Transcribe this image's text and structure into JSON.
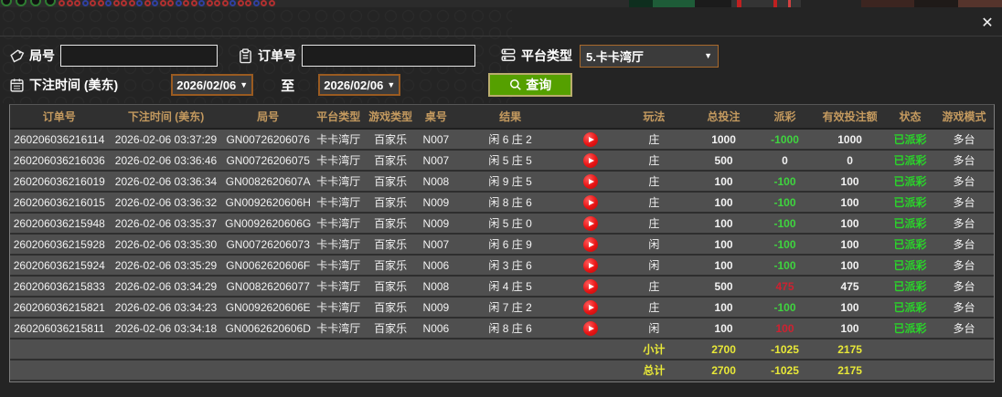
{
  "window": {
    "close_label": "✕"
  },
  "filters": {
    "round_label": "局号",
    "order_label": "订单号",
    "platform_label": "平台类型",
    "platform_value": "5.卡卡湾厅",
    "bet_time_label": "下注时间 (美东)",
    "date_from": "2026/02/06",
    "date_to": "2026/02/06",
    "to_label": "至",
    "query_label": "查询",
    "caret": "▼"
  },
  "table": {
    "headers": [
      "订单号",
      "下注时间 (美东)",
      "局号",
      "平台类型",
      "游戏类型",
      "桌号",
      "结果",
      "",
      "玩法",
      "总投注",
      "派彩",
      "有效投注额",
      "状态",
      "游戏模式"
    ],
    "rows": [
      {
        "order": "260206036216114",
        "time": "2026-02-06 03:37:29",
        "round": "GN00726206076",
        "platform": "卡卡湾厅",
        "game": "百家乐",
        "table": "N007",
        "result": "闲 6 庄 2",
        "play": "庄",
        "bet": "1000",
        "payout": "-1000",
        "payout_sign": "neg",
        "valid": "1000",
        "status": "已派彩",
        "mode": "多台"
      },
      {
        "order": "260206036216036",
        "time": "2026-02-06 03:36:46",
        "round": "GN00726206075",
        "platform": "卡卡湾厅",
        "game": "百家乐",
        "table": "N007",
        "result": "闲 5 庄 5",
        "play": "庄",
        "bet": "500",
        "payout": "0",
        "payout_sign": "zero",
        "valid": "0",
        "status": "已派彩",
        "mode": "多台"
      },
      {
        "order": "260206036216019",
        "time": "2026-02-06 03:36:34",
        "round": "GN0082620607A",
        "platform": "卡卡湾厅",
        "game": "百家乐",
        "table": "N008",
        "result": "闲 9 庄 5",
        "play": "庄",
        "bet": "100",
        "payout": "-100",
        "payout_sign": "neg",
        "valid": "100",
        "status": "已派彩",
        "mode": "多台"
      },
      {
        "order": "260206036216015",
        "time": "2026-02-06 03:36:32",
        "round": "GN0092620606H",
        "platform": "卡卡湾厅",
        "game": "百家乐",
        "table": "N009",
        "result": "闲 8 庄 6",
        "play": "庄",
        "bet": "100",
        "payout": "-100",
        "payout_sign": "neg",
        "valid": "100",
        "status": "已派彩",
        "mode": "多台"
      },
      {
        "order": "260206036215948",
        "time": "2026-02-06 03:35:37",
        "round": "GN0092620606G",
        "platform": "卡卡湾厅",
        "game": "百家乐",
        "table": "N009",
        "result": "闲 5 庄 0",
        "play": "庄",
        "bet": "100",
        "payout": "-100",
        "payout_sign": "neg",
        "valid": "100",
        "status": "已派彩",
        "mode": "多台"
      },
      {
        "order": "260206036215928",
        "time": "2026-02-06 03:35:30",
        "round": "GN00726206073",
        "platform": "卡卡湾厅",
        "game": "百家乐",
        "table": "N007",
        "result": "闲 6 庄 9",
        "play": "闲",
        "bet": "100",
        "payout": "-100",
        "payout_sign": "neg",
        "valid": "100",
        "status": "已派彩",
        "mode": "多台"
      },
      {
        "order": "260206036215924",
        "time": "2026-02-06 03:35:29",
        "round": "GN0062620606F",
        "platform": "卡卡湾厅",
        "game": "百家乐",
        "table": "N006",
        "result": "闲 3 庄 6",
        "play": "闲",
        "bet": "100",
        "payout": "-100",
        "payout_sign": "neg",
        "valid": "100",
        "status": "已派彩",
        "mode": "多台"
      },
      {
        "order": "260206036215833",
        "time": "2026-02-06 03:34:29",
        "round": "GN00826206077",
        "platform": "卡卡湾厅",
        "game": "百家乐",
        "table": "N008",
        "result": "闲 4 庄 5",
        "play": "庄",
        "bet": "500",
        "payout": "475",
        "payout_sign": "pos",
        "valid": "475",
        "status": "已派彩",
        "mode": "多台"
      },
      {
        "order": "260206036215821",
        "time": "2026-02-06 03:34:23",
        "round": "GN0092620606E",
        "platform": "卡卡湾厅",
        "game": "百家乐",
        "table": "N009",
        "result": "闲 7 庄 2",
        "play": "庄",
        "bet": "100",
        "payout": "-100",
        "payout_sign": "neg",
        "valid": "100",
        "status": "已派彩",
        "mode": "多台"
      },
      {
        "order": "260206036215811",
        "time": "2026-02-06 03:34:18",
        "round": "GN0062620606D",
        "platform": "卡卡湾厅",
        "game": "百家乐",
        "table": "N006",
        "result": "闲 8 庄 6",
        "play": "闲",
        "bet": "100",
        "payout": "100",
        "payout_sign": "pos",
        "valid": "100",
        "status": "已派彩",
        "mode": "多台"
      }
    ],
    "summary": [
      {
        "label": "小计",
        "bet": "2700",
        "payout": "-1025",
        "valid": "2175"
      },
      {
        "label": "总计",
        "bet": "2700",
        "payout": "-1025",
        "valid": "2175"
      }
    ]
  },
  "colors": {
    "accent_green": "#55a000",
    "header_gold": "#c49a5f",
    "win_red": "#cf2130",
    "loss_green": "#3fd43f",
    "status_green": "#2ad42a",
    "summary_yellow": "#e8e838"
  }
}
